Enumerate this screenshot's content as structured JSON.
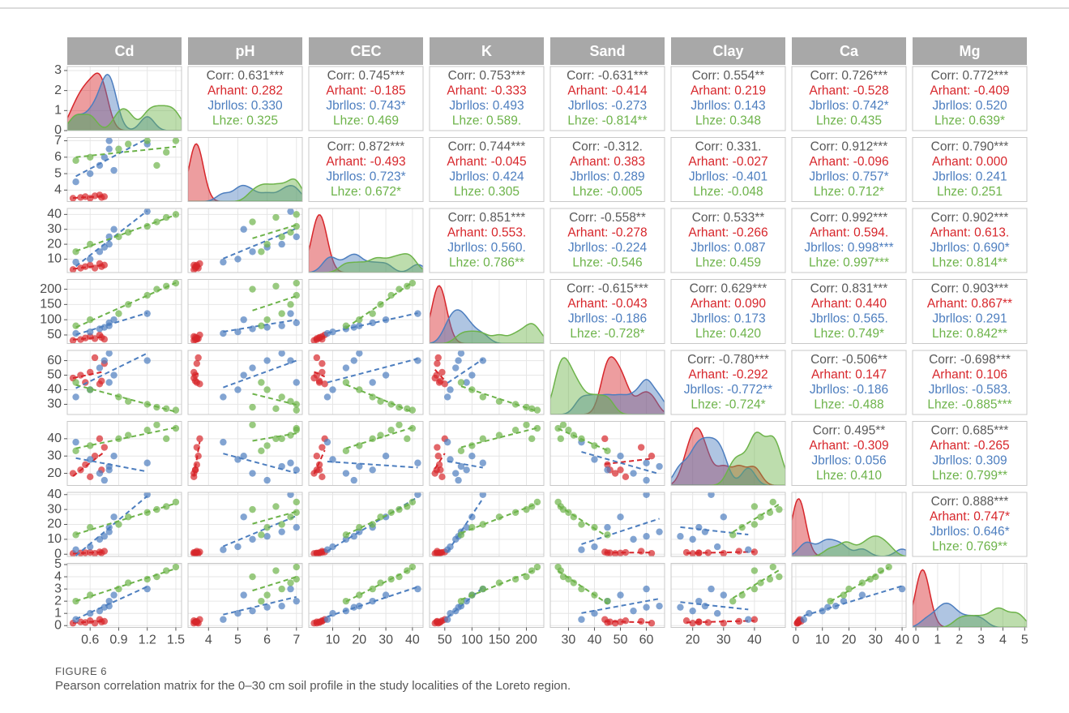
{
  "chart_data": {
    "type": "pairs",
    "corr_color": "#595959",
    "group_colors": [
      "#d7262b",
      "#4d7ebf",
      "#6db34a"
    ],
    "density_ylim": [
      0,
      3.2
    ],
    "density_yticks": [
      0,
      1,
      2,
      3
    ],
    "variables": [
      {
        "name": "Cd",
        "lim": [
          0.36,
          1.56
        ],
        "ticks": [
          0.6,
          0.9,
          1.2,
          1.5
        ],
        "series": [
          [
            0.42,
            0.5,
            0.55,
            0.6,
            0.65,
            0.7,
            0.72,
            0.75
          ],
          [
            0.45,
            0.6,
            0.7,
            0.75,
            0.8,
            0.8,
            0.85,
            1.2
          ],
          [
            0.45,
            0.6,
            0.9,
            1.0,
            1.2,
            1.3,
            1.4,
            1.5
          ]
        ]
      },
      {
        "name": "pH",
        "lim": [
          3.3,
          7.2
        ],
        "ticks": [
          4,
          5,
          6,
          7
        ],
        "series": [
          [
            3.5,
            3.55,
            3.6,
            3.5,
            3.65,
            3.7,
            3.55,
            3.6
          ],
          [
            4.5,
            5,
            5.5,
            6,
            6.5,
            7,
            5.2,
            6.8
          ],
          [
            5.8,
            6,
            6.5,
            6.8,
            7,
            5.5,
            6.3,
            7
          ]
        ]
      },
      {
        "name": "CEC",
        "lim": [
          1,
          44
        ],
        "ticks": [
          10,
          20,
          30,
          40
        ],
        "series": [
          [
            3,
            4,
            5,
            6,
            4,
            7,
            5,
            6
          ],
          [
            8,
            10,
            15,
            18,
            20,
            25,
            30,
            42
          ],
          [
            15,
            20,
            25,
            28,
            32,
            35,
            38,
            40
          ]
        ]
      },
      {
        "name": "K",
        "lim": [
          22,
          232
        ],
        "ticks": [
          50,
          100,
          150,
          200
        ],
        "series": [
          [
            32,
            35,
            40,
            45,
            38,
            50,
            42,
            36
          ],
          [
            55,
            60,
            70,
            75,
            80,
            90,
            100,
            120
          ],
          [
            80,
            100,
            120,
            150,
            180,
            200,
            210,
            220
          ]
        ]
      },
      {
        "name": "Sand",
        "lim": [
          23,
          67
        ],
        "ticks": [
          30,
          40,
          50,
          60
        ],
        "series": [
          [
            48,
            50,
            45,
            52,
            62,
            44,
            46,
            58
          ],
          [
            35,
            40,
            55,
            60,
            65,
            45,
            50,
            60
          ],
          [
            45,
            40,
            35,
            32,
            30,
            28,
            27,
            26
          ]
        ]
      },
      {
        "name": "Clay",
        "lim": [
          13,
          50
        ],
        "ticks": [
          20,
          30,
          40
        ],
        "series": [
          [
            20,
            22,
            25,
            18,
            30,
            40,
            22,
            35
          ],
          [
            38,
            28,
            20,
            16,
            24,
            22,
            30,
            26
          ],
          [
            33,
            36,
            40,
            42,
            45,
            48,
            40,
            46
          ]
        ]
      },
      {
        "name": "Ca",
        "lim": [
          -1.5,
          41.5
        ],
        "ticks": [
          0,
          10,
          20,
          30,
          40
        ],
        "series": [
          [
            0.5,
            0.8,
            1,
            1.2,
            0.6,
            1.5,
            0.9,
            2
          ],
          [
            3,
            5,
            10,
            12,
            15,
            18,
            25,
            40
          ],
          [
            13,
            18,
            20,
            25,
            28,
            30,
            32,
            35
          ]
        ]
      },
      {
        "name": "Mg",
        "lim": [
          -0.15,
          5.1
        ],
        "ticks": [
          0,
          1,
          2,
          3,
          4,
          5
        ],
        "series": [
          [
            0.2,
            0.3,
            0.25,
            0.4,
            0.2,
            0.5,
            0.3,
            0.35
          ],
          [
            0.5,
            1,
            1.2,
            1.5,
            1.6,
            2,
            2.5,
            3
          ],
          [
            2,
            2.5,
            3,
            3.5,
            3.8,
            4,
            4.5,
            4.8
          ]
        ]
      }
    ],
    "upper": [
      [
        [
          "Corr: 0.631***",
          "Arhant: 0.282",
          "Jbrllos: 0.330",
          "Lhze: 0.325"
        ],
        [
          "Corr: 0.745***",
          "Arhant: -0.185",
          "Jbrllos: 0.743*",
          "Lhze: 0.469"
        ],
        [
          "Corr: 0.753***",
          "Arhant: -0.333",
          "Jbrllos: 0.493",
          "Lhze: 0.589."
        ],
        [
          "Corr: -0.631***",
          "Arhant: -0.414",
          "Jbrllos: -0.273",
          "Lhze: -0.814**"
        ],
        [
          "Corr: 0.554**",
          "Arhant: 0.219",
          "Jbrllos: 0.143",
          "Lhze: 0.348"
        ],
        [
          "Corr: 0.726***",
          "Arhant: -0.528",
          "Jbrllos: 0.742*",
          "Lhze: 0.435"
        ],
        [
          "Corr: 0.772***",
          "Arhant: -0.409",
          "Jbrllos: 0.520",
          "Lhze: 0.639*"
        ]
      ],
      [
        [
          "Corr: 0.872***",
          "Arhant: -0.493",
          "Jbrllos: 0.723*",
          "Lhze: 0.672*"
        ],
        [
          "Corr: 0.744***",
          "Arhant: -0.045",
          "Jbrllos: 0.424",
          "Lhze: 0.305"
        ],
        [
          "Corr: -0.312.",
          "Arhant: 0.383",
          "Jbrllos: 0.289",
          "Lhze: -0.005"
        ],
        [
          "Corr: 0.331.",
          "Arhant: -0.027",
          "Jbrllos: -0.401",
          "Lhze: -0.048"
        ],
        [
          "Corr: 0.912***",
          "Arhant: -0.096",
          "Jbrllos: 0.757*",
          "Lhze: 0.712*"
        ],
        [
          "Corr: 0.790***",
          "Arhant: 0.000",
          "Jbrllos: 0.241",
          "Lhze: 0.251"
        ]
      ],
      [
        [
          "Corr: 0.851***",
          "Arhant: 0.553.",
          "Jbrllos: 0.560.",
          "Lhze: 0.786**"
        ],
        [
          "Corr: -0.558**",
          "Arhant: -0.278",
          "Jbrllos: -0.224",
          "Lhze: -0.546"
        ],
        [
          "Corr: 0.533**",
          "Arhant: -0.266",
          "Jbrllos: 0.087",
          "Lhze: 0.459"
        ],
        [
          "Corr: 0.992***",
          "Arhant: 0.594.",
          "Jbrllos: 0.998***",
          "Lhze: 0.997***"
        ],
        [
          "Corr: 0.902***",
          "Arhant: 0.613.",
          "Jbrllos: 0.690*",
          "Lhze: 0.814**"
        ]
      ],
      [
        [
          "Corr: -0.615***",
          "Arhant: -0.043",
          "Jbrllos: -0.186",
          "Lhze: -0.728*"
        ],
        [
          "Corr: 0.629***",
          "Arhant: 0.090",
          "Jbrllos: 0.173",
          "Lhze: 0.420"
        ],
        [
          "Corr: 0.831***",
          "Arhant: 0.440",
          "Jbrllos: 0.565.",
          "Lhze: 0.749*"
        ],
        [
          "Corr: 0.903***",
          "Arhant: 0.867**",
          "Jbrllos: 0.291",
          "Lhze: 0.842**"
        ]
      ],
      [
        [
          "Corr: -0.780***",
          "Arhant: -0.292",
          "Jbrllos: -0.772**",
          "Lhze: -0.724*"
        ],
        [
          "Corr: -0.506**",
          "Arhant: 0.147",
          "Jbrllos: -0.186",
          "Lhze: -0.488"
        ],
        [
          "Corr: -0.698***",
          "Arhant: 0.106",
          "Jbrllos: -0.583.",
          "Lhze: -0.885***"
        ]
      ],
      [
        [
          "Corr: 0.495**",
          "Arhant: -0.309",
          "Jbrllos: 0.056",
          "Lhze: 0.410"
        ],
        [
          "Corr: 0.685***",
          "Arhant: -0.265",
          "Jbrllos: 0.309",
          "Lhze: 0.799**"
        ]
      ],
      [
        [
          "Corr: 0.888***",
          "Arhant: 0.747*",
          "Jbrllos: 0.646*",
          "Lhze: 0.769**"
        ]
      ]
    ]
  },
  "caption": {
    "label": "FIGURE 6",
    "text": "Pearson correlation matrix for the 0–30 cm soil profile in the study localities of the Loreto region."
  }
}
